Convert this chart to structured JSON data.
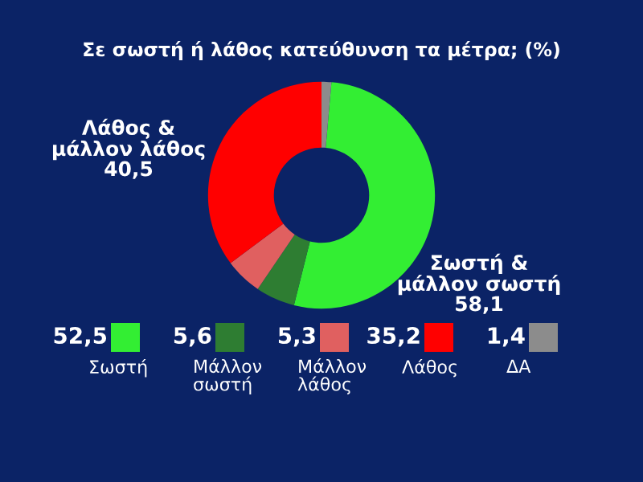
{
  "chart_data": {
    "type": "donut",
    "title": "Σε σωστή ή λάθος κατεύθυνση τα μέτρα; (%)",
    "categories": [
      "Σωστή",
      "Μάλλον σωστή",
      "Μάλλον λάθος",
      "Λάθος",
      "ΔΑ"
    ],
    "values": [
      52.5,
      5.6,
      5.3,
      35.2,
      1.4
    ],
    "value_labels": [
      "52,5",
      "5,6",
      "5,3",
      "35,2",
      "1,4"
    ],
    "colors": [
      "#33ee33",
      "#2e7d32",
      "#e06060",
      "#ff0000",
      "#8c8c8c"
    ],
    "annotations": [
      "Λάθος &\nμάλλον λάθος\n40,5",
      "Σωστή &\nμάλλον σωστή\n58,1"
    ],
    "legend": "bottom"
  }
}
